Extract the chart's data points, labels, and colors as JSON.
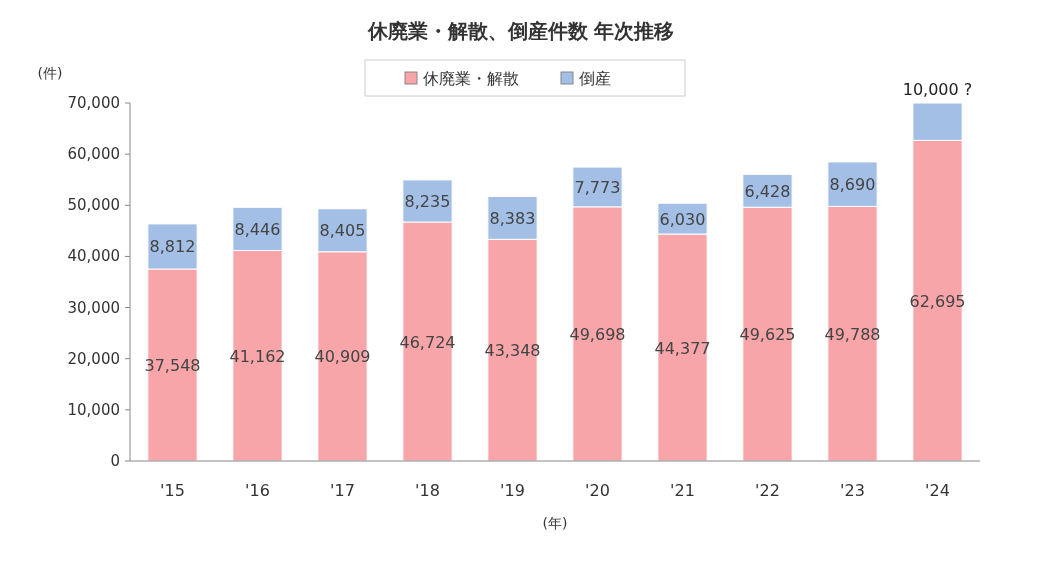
{
  "chart_data": {
    "type": "bar",
    "stacked": true,
    "title": "休廃業・解散、倒産件数 年次推移",
    "ylabel": "(件)",
    "xlabel": "(年)",
    "categories": [
      "'15",
      "'16",
      "'17",
      "'18",
      "'19",
      "'20",
      "'21",
      "'22",
      "'23",
      "'24"
    ],
    "series": [
      {
        "name": "休廃業・解散",
        "color": "#f7a5a8",
        "values": [
          37548,
          41162,
          40909,
          46724,
          43348,
          49698,
          44377,
          49625,
          49788,
          62695
        ],
        "value_labels": [
          "37,548",
          "41,162",
          "40,909",
          "46,724",
          "43,348",
          "49,698",
          "44,377",
          "49,625",
          "49,788",
          "62,695"
        ]
      },
      {
        "name": "倒産",
        "color": "#a3bfe6",
        "values": [
          8812,
          8446,
          8405,
          8235,
          8383,
          7773,
          6030,
          6428,
          8690,
          7300
        ],
        "value_labels": [
          "8,812",
          "8,446",
          "8,405",
          "8,235",
          "8,383",
          "7,773",
          "6,030",
          "6,428",
          "8,690",
          null
        ]
      }
    ],
    "ylim": [
      0,
      70000
    ],
    "yticks": [
      {
        "value": 0,
        "label": "0"
      },
      {
        "value": 10000,
        "label": "10,000"
      },
      {
        "value": 20000,
        "label": "20,000"
      },
      {
        "value": 30000,
        "label": "30,000"
      },
      {
        "value": 40000,
        "label": "40,000"
      },
      {
        "value": 50000,
        "label": "50,000"
      },
      {
        "value": 60000,
        "label": "60,000"
      },
      {
        "value": 70000,
        "label": "70,000"
      }
    ],
    "grid": false,
    "legend": "top",
    "annotations": [
      {
        "text": "10,000 ?",
        "x": "'24",
        "y": 70000
      }
    ]
  }
}
